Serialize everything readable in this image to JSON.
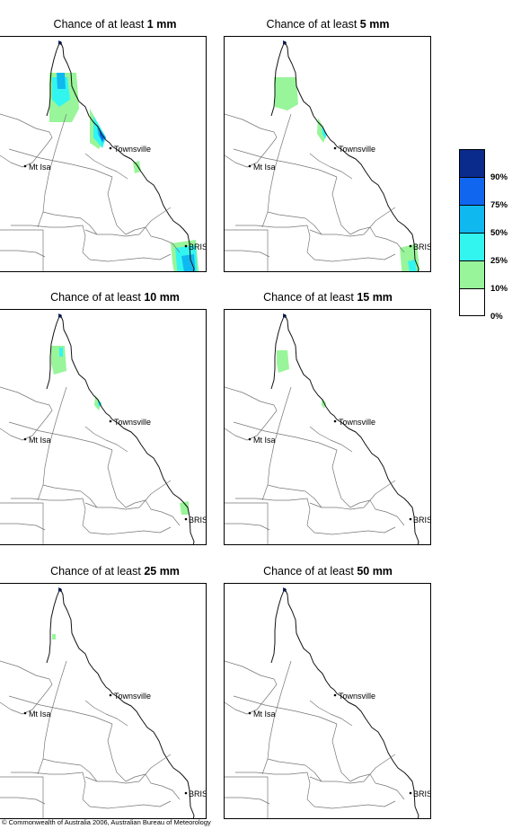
{
  "panels": [
    {
      "prefix": "Chance of at least",
      "amount": "1 mm",
      "towns": {
        "townsville": "Townsville",
        "mt_isa": "Mt Isa",
        "brisbane": "BRIS"
      },
      "areas": [
        {
          "cat": 25,
          "p": [
            [
              55,
              40
            ],
            [
              85,
              40
            ],
            [
              88,
              80
            ],
            [
              80,
              95
            ],
            [
              55,
              95
            ]
          ]
        },
        {
          "cat": 50,
          "p": [
            [
              58,
              45
            ],
            [
              75,
              45
            ],
            [
              78,
              70
            ],
            [
              66,
              78
            ],
            [
              58,
              70
            ]
          ]
        },
        {
          "cat": 75,
          "p": [
            [
              63,
              40
            ],
            [
              72,
              40
            ],
            [
              73,
              58
            ],
            [
              64,
              58
            ]
          ]
        },
        {
          "cat": 25,
          "p": [
            [
              100,
              80
            ],
            [
              118,
              112
            ],
            [
              110,
              125
            ],
            [
              100,
              118
            ]
          ]
        },
        {
          "cat": 50,
          "p": [
            [
              104,
              88
            ],
            [
              118,
              112
            ],
            [
              114,
              124
            ],
            [
              104,
              112
            ]
          ]
        },
        {
          "cat": 75,
          "p": [
            [
              108,
              98
            ],
            [
              118,
              112
            ],
            [
              114,
              118
            ],
            [
              109,
              108
            ]
          ]
        },
        {
          "cat": 90,
          "p": [
            [
              111,
              104
            ],
            [
              116,
              112
            ],
            [
              114,
              116
            ],
            [
              111,
              110
            ]
          ]
        },
        {
          "cat": 25,
          "p": [
            [
              148,
              140
            ],
            [
              155,
              138
            ],
            [
              157,
              150
            ],
            [
              150,
              152
            ]
          ]
        },
        {
          "cat": 25,
          "p": [
            [
              190,
              230
            ],
            [
              218,
              226
            ],
            [
              222,
              268
            ],
            [
              195,
              268
            ],
            [
              192,
              252
            ]
          ]
        },
        {
          "cat": 50,
          "p": [
            [
              195,
              235
            ],
            [
              218,
              232
            ],
            [
              220,
              268
            ],
            [
              198,
              268
            ]
          ]
        },
        {
          "cat": 75,
          "p": [
            [
              202,
              244
            ],
            [
              216,
              242
            ],
            [
              218,
              268
            ],
            [
              206,
              268
            ]
          ]
        }
      ]
    },
    {
      "prefix": "Chance of at least",
      "amount": "5 mm",
      "towns": {
        "townsville": "Townsville",
        "mt_isa": "Mt Isa",
        "brisbane": "BRIS"
      },
      "areas": [
        {
          "cat": 25,
          "p": [
            [
              55,
              45
            ],
            [
              80,
              45
            ],
            [
              82,
              75
            ],
            [
              70,
              82
            ],
            [
              56,
              78
            ]
          ]
        },
        {
          "cat": 25,
          "p": [
            [
              104,
              90
            ],
            [
              114,
              108
            ],
            [
              110,
              118
            ],
            [
              103,
              108
            ]
          ]
        },
        {
          "cat": 50,
          "p": [
            [
              108,
              100
            ],
            [
              114,
              108
            ],
            [
              112,
              114
            ],
            [
              109,
              108
            ]
          ]
        },
        {
          "cat": 25,
          "p": [
            [
              195,
              235
            ],
            [
              214,
              230
            ],
            [
              218,
              268
            ],
            [
              198,
              268
            ]
          ]
        },
        {
          "cat": 50,
          "p": [
            [
              204,
              250
            ],
            [
              212,
              248
            ],
            [
              214,
              262
            ],
            [
              206,
              262
            ]
          ]
        }
      ]
    },
    {
      "prefix": "Chance of at least",
      "amount": "10 mm",
      "towns": {
        "townsville": "Townsville",
        "mt_isa": "Mt Isa",
        "brisbane": "BRIS"
      },
      "areas": [
        {
          "cat": 25,
          "p": [
            [
              57,
              40
            ],
            [
              72,
              40
            ],
            [
              74,
              68
            ],
            [
              60,
              72
            ],
            [
              57,
              60
            ]
          ]
        },
        {
          "cat": 50,
          "p": [
            [
              66,
              42
            ],
            [
              70,
              42
            ],
            [
              70,
              52
            ],
            [
              66,
              52
            ]
          ]
        },
        {
          "cat": 25,
          "p": [
            [
              106,
              95
            ],
            [
              113,
              104
            ],
            [
              110,
              112
            ],
            [
              105,
              106
            ]
          ]
        },
        {
          "cat": 50,
          "p": [
            [
              109,
              100
            ],
            [
              113,
              104
            ],
            [
              111,
              108
            ],
            [
              109,
              106
            ]
          ]
        },
        {
          "cat": 25,
          "p": [
            [
              200,
              215
            ],
            [
              210,
              213
            ],
            [
              210,
              228
            ],
            [
              202,
              228
            ]
          ]
        }
      ]
    },
    {
      "prefix": "Chance of at least",
      "amount": "15 mm",
      "towns": {
        "townsville": "Townsville",
        "mt_isa": "Mt Isa",
        "brisbane": "BRIS"
      },
      "areas": [
        {
          "cat": 25,
          "p": [
            [
              58,
              45
            ],
            [
              70,
              45
            ],
            [
              72,
              66
            ],
            [
              60,
              70
            ],
            [
              58,
              60
            ]
          ]
        },
        {
          "cat": 25,
          "p": [
            [
              108,
              98
            ],
            [
              113,
              104
            ],
            [
              111,
              110
            ],
            [
              108,
              106
            ]
          ]
        }
      ]
    },
    {
      "prefix": "Chance of at least",
      "amount": "25 mm",
      "towns": {
        "townsville": "Townsville",
        "mt_isa": "Mt Isa",
        "brisbane": "BRIS"
      },
      "areas": [
        {
          "cat": 25,
          "p": [
            [
              58,
              56
            ],
            [
              62,
              56
            ],
            [
              62,
              62
            ],
            [
              58,
              62
            ]
          ]
        }
      ]
    },
    {
      "prefix": "Chance of at least",
      "amount": "50 mm",
      "towns": {
        "townsville": "Townsville",
        "mt_isa": "Mt Isa",
        "brisbane": "BRIS"
      },
      "areas": []
    }
  ],
  "legend": {
    "levels": [
      {
        "label": "",
        "color": "#0a2a8c"
      },
      {
        "label": "90%",
        "color": "#1166f0"
      },
      {
        "label": "75%",
        "color": "#10b8f0"
      },
      {
        "label": "50%",
        "color": "#33f5f0"
      },
      {
        "label": "25%",
        "color": "#99f59a"
      },
      {
        "label": "10%",
        "color": "#ffffff"
      }
    ],
    "zero_label": "0%"
  },
  "category_colors": {
    "25": "#99f59a",
    "50": "#33f5f0",
    "75": "#10b8f0",
    "90": "#1166f0",
    "100": "#0a2a8c"
  },
  "copyright": "© Commonwealth of Australia 2006, Australian Bureau of Meteorology"
}
